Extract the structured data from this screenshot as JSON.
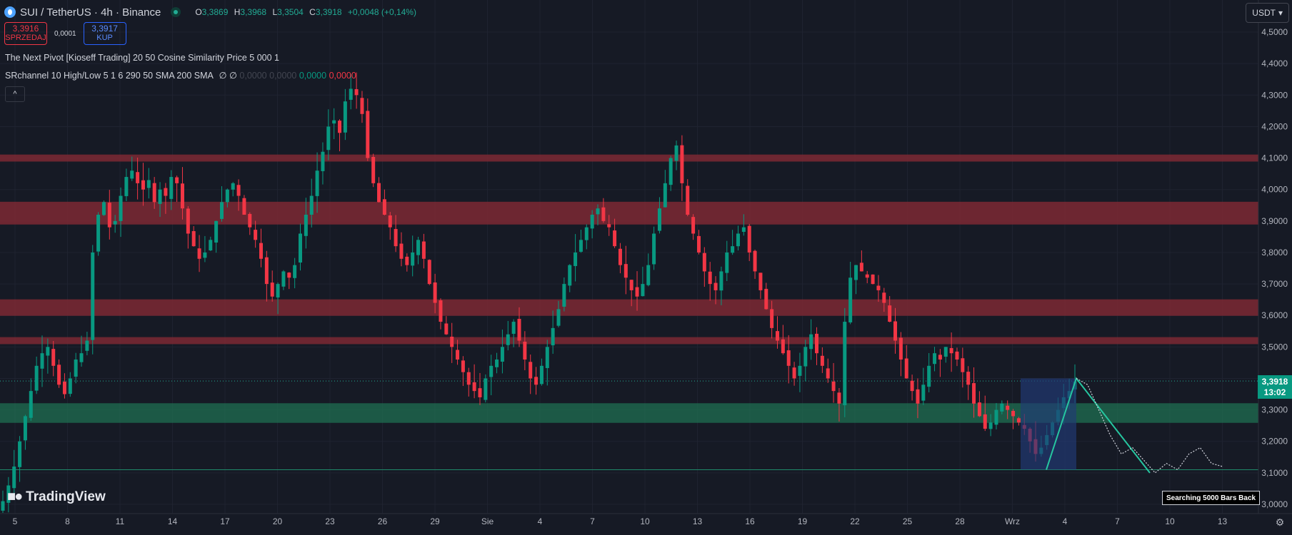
{
  "header": {
    "symbol": "SUI / TetherUS · 4h · Binance",
    "ohlc": [
      {
        "k": "O",
        "v": "3,3869"
      },
      {
        "k": "H",
        "v": "3,3968"
      },
      {
        "k": "L",
        "v": "3,3504"
      },
      {
        "k": "C",
        "v": "3,3918"
      }
    ],
    "change": "+0,0048 (+0,14%)"
  },
  "trade": {
    "sell_price": "3,3916",
    "sell_label": "SPRZEDAJ",
    "spread": "0,0001",
    "buy_price": "3,3917",
    "buy_label": "KUP"
  },
  "indicators": {
    "pivot": "The Next Pivot [Kioseff Trading] 20 50 Cosine Similarity Price 5 000 1",
    "srchannel": "SRchannel 10 High/Low 5 1 6 290 50 SMA 200 SMA",
    "srchannel_symbols": "∅ ∅",
    "srchannel_values": [
      "0,0000",
      "0,0000",
      "0,0000",
      "0,0000"
    ],
    "collapse_icon": "chevron-up-icon"
  },
  "currency": "USDT",
  "logo": "TradingView",
  "search_label": "Searching 5000 Bars Back",
  "last_price": {
    "price": "3,3918",
    "countdown": "13:02"
  },
  "colors": {
    "up": "#089981",
    "down": "#f23645",
    "bg": "#161a25",
    "resistance_zone": "#8a2a35",
    "support_zone": "#1f6f52",
    "projection": "#26c6a0",
    "pattern_box": "#223a78"
  },
  "chart_data": {
    "type": "candlestick",
    "y_axis": {
      "min": 2.95,
      "max": 4.55,
      "position": "right",
      "ticks": [
        {
          "v": 3.0,
          "label": "3,0000"
        },
        {
          "v": 3.1,
          "label": "3,1000"
        },
        {
          "v": 3.2,
          "label": "3,2000"
        },
        {
          "v": 3.3,
          "label": "3,3000"
        },
        {
          "v": 3.4,
          "label": "3,4000"
        },
        {
          "v": 3.5,
          "label": "3,5000"
        },
        {
          "v": 3.6,
          "label": "3,6000"
        },
        {
          "v": 3.7,
          "label": "3,7000"
        },
        {
          "v": 3.8,
          "label": "3,8000"
        },
        {
          "v": 3.9,
          "label": "3,9000"
        },
        {
          "v": 4.0,
          "label": "4,0000"
        },
        {
          "v": 4.1,
          "label": "4,1000"
        },
        {
          "v": 4.2,
          "label": "4,2000"
        },
        {
          "v": 4.3,
          "label": "4,3000"
        },
        {
          "v": 4.4,
          "label": "4,4000"
        },
        {
          "v": 4.5,
          "label": "4,5000"
        }
      ]
    },
    "x_axis": {
      "ticks": [
        "5",
        "8",
        "11",
        "14",
        "17",
        "20",
        "23",
        "26",
        "29",
        "Sie",
        "4",
        "7",
        "10",
        "13",
        "16",
        "19",
        "22",
        "25",
        "28",
        "Wrz",
        "4",
        "7",
        "10",
        "13"
      ]
    },
    "closes": [
      3.01,
      3.06,
      3.12,
      3.2,
      3.28,
      3.36,
      3.44,
      3.48,
      3.5,
      3.44,
      3.38,
      3.35,
      3.4,
      3.46,
      3.48,
      3.52,
      3.8,
      3.92,
      3.96,
      3.88,
      3.9,
      3.98,
      4.04,
      4.06,
      4.02,
      4.0,
      4.03,
      3.96,
      4.0,
      3.98,
      4.04,
      4.02,
      3.94,
      3.86,
      3.82,
      3.78,
      3.8,
      3.84,
      3.9,
      3.96,
      4.0,
      4.02,
      3.98,
      3.92,
      3.88,
      3.84,
      3.78,
      3.7,
      3.66,
      3.7,
      3.74,
      3.72,
      3.76,
      3.86,
      3.92,
      3.98,
      4.06,
      4.12,
      4.2,
      4.22,
      4.18,
      4.28,
      4.32,
      4.3,
      4.24,
      4.1,
      4.02,
      3.96,
      3.92,
      3.88,
      3.82,
      3.78,
      3.76,
      3.8,
      3.84,
      3.78,
      3.7,
      3.64,
      3.58,
      3.54,
      3.5,
      3.46,
      3.42,
      3.38,
      3.36,
      3.34,
      3.4,
      3.44,
      3.46,
      3.5,
      3.54,
      3.58,
      3.52,
      3.46,
      3.4,
      3.38,
      3.44,
      3.5,
      3.56,
      3.62,
      3.7,
      3.76,
      3.8,
      3.84,
      3.88,
      3.92,
      3.94,
      3.9,
      3.88,
      3.82,
      3.76,
      3.72,
      3.68,
      3.66,
      3.7,
      3.76,
      3.86,
      3.94,
      4.02,
      4.1,
      4.14,
      4.02,
      3.92,
      3.86,
      3.8,
      3.74,
      3.7,
      3.68,
      3.74,
      3.8,
      3.82,
      3.86,
      3.88,
      3.8,
      3.74,
      3.68,
      3.62,
      3.56,
      3.52,
      3.48,
      3.44,
      3.4,
      3.44,
      3.5,
      3.54,
      3.48,
      3.44,
      3.4,
      3.36,
      3.32,
      3.58,
      3.72,
      3.76,
      3.74,
      3.72,
      3.7,
      3.68,
      3.64,
      3.58,
      3.52,
      3.46,
      3.4,
      3.36,
      3.32,
      3.38,
      3.44,
      3.48,
      3.46,
      3.5,
      3.48,
      3.46,
      3.42,
      3.38,
      3.32,
      3.28,
      3.24,
      3.26,
      3.3,
      3.32,
      3.3,
      3.28,
      3.26,
      3.24,
      3.2,
      3.16,
      3.18,
      3.22,
      3.26,
      3.3,
      3.34,
      3.36,
      3.39
    ],
    "zones": [
      {
        "role": "resistance",
        "low": 4.09,
        "high": 4.11
      },
      {
        "role": "resistance",
        "low": 3.89,
        "high": 3.96
      },
      {
        "role": "resistance",
        "low": 3.6,
        "high": 3.65
      },
      {
        "role": "resistance",
        "low": 3.51,
        "high": 3.53
      },
      {
        "role": "support",
        "low": 3.26,
        "high": 3.32
      }
    ],
    "support_line": 3.11,
    "last_price_line": 3.3918,
    "pattern_box": {
      "low": 3.11,
      "high": 3.4
    },
    "projection_path": [
      3.11,
      3.4,
      3.1
    ],
    "ghost_path": [
      3.4,
      3.38,
      3.3,
      3.22,
      3.16,
      3.18,
      3.14,
      3.1,
      3.13,
      3.11,
      3.16,
      3.18,
      3.13,
      3.12
    ]
  }
}
